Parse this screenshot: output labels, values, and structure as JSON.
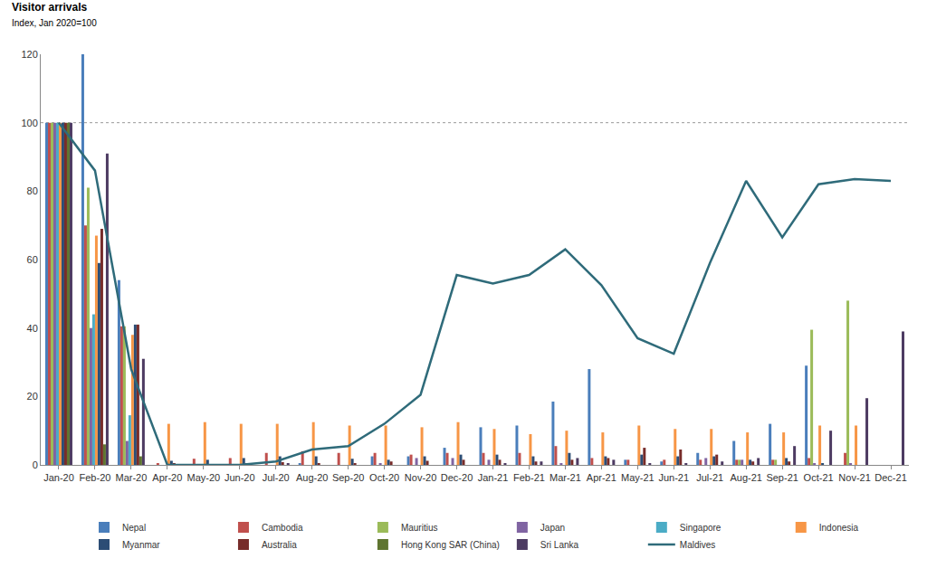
{
  "chart_data": {
    "type": "bar",
    "title": "Visitor arrivals",
    "subtitle": "Index, Jan 2020=100",
    "categories": [
      "Jan-20",
      "Feb-20",
      "Mar-20",
      "Apr-20",
      "May-20",
      "Jun-20",
      "Jul-20",
      "Aug-20",
      "Sep-20",
      "Oct-20",
      "Nov-20",
      "Dec-20",
      "Jan-21",
      "Feb-21",
      "Mar-21",
      "Apr-21",
      "May-21",
      "Jun-21",
      "Jul-21",
      "Aug-21",
      "Sep-21",
      "Oct-21",
      "Nov-21",
      "Dec-21"
    ],
    "ylim": [
      0,
      120
    ],
    "yticks": [
      0,
      20,
      40,
      60,
      80,
      100,
      120
    ],
    "grid": false,
    "legend": "bottom",
    "reference_line": 100,
    "series": [
      {
        "name": "Nepal",
        "type": "bar",
        "color": "#4a7ebb",
        "values": [
          100,
          120,
          54,
          0,
          0,
          0,
          0,
          0.5,
          0,
          2.5,
          2.5,
          5,
          11,
          11.5,
          18.5,
          28,
          1.5,
          1,
          3.5,
          7,
          12,
          29,
          0,
          null
        ]
      },
      {
        "name": "Cambodia",
        "type": "bar",
        "color": "#c0504d",
        "values": [
          100,
          70,
          40.5,
          0.5,
          1.8,
          2,
          3.5,
          4,
          3.5,
          3.5,
          3,
          3.5,
          3.5,
          3.5,
          5.5,
          2,
          1.5,
          1.5,
          1.5,
          1.5,
          1.5,
          2,
          3.5,
          null
        ]
      },
      {
        "name": "Mauritius",
        "type": "bar",
        "color": "#9bbb59",
        "values": [
          100,
          81,
          40.5,
          0,
          0,
          0,
          0,
          0,
          0,
          0,
          0,
          0,
          0,
          0,
          0,
          0,
          0,
          0,
          0,
          1.5,
          1.5,
          39.5,
          48,
          null
        ]
      },
      {
        "name": "Japan",
        "type": "bar",
        "color": "#8064a2",
        "values": [
          100,
          40,
          7,
          0,
          0,
          0,
          0,
          0,
          0,
          0.5,
          2,
          2,
          1.5,
          0,
          0.5,
          0,
          0,
          0,
          2,
          1.5,
          0,
          0.5,
          0.5,
          null
        ]
      },
      {
        "name": "Singapore",
        "type": "bar",
        "color": "#4bacc6",
        "values": [
          100,
          44,
          14.5,
          0,
          0,
          0,
          0,
          0,
          0,
          0,
          0,
          0,
          0,
          0,
          0,
          0,
          0,
          0,
          0,
          0,
          0,
          0,
          0,
          null
        ]
      },
      {
        "name": "Indonesia",
        "type": "bar",
        "color": "#f79646",
        "values": [
          100,
          67,
          38,
          12,
          12.5,
          12,
          12,
          12.5,
          11.5,
          11.5,
          11,
          12.5,
          10.5,
          9,
          10,
          9.5,
          11.5,
          10.5,
          10.5,
          9.5,
          9.5,
          11.5,
          11.5,
          null
        ]
      },
      {
        "name": "Myanmar",
        "type": "bar",
        "color": "#2c4d75",
        "values": [
          100,
          59,
          41,
          1.2,
          1.5,
          2,
          2.5,
          2.5,
          1.8,
          1.5,
          2.5,
          3,
          3,
          2.5,
          3.5,
          2.5,
          3,
          2.5,
          2.5,
          1.5,
          2,
          0.5,
          0,
          null
        ]
      },
      {
        "name": "Australia",
        "type": "bar",
        "color": "#772c2a",
        "values": [
          100,
          69,
          41,
          0.5,
          0,
          0.5,
          0.8,
          0.5,
          0.5,
          1,
          1.2,
          1.5,
          1.5,
          1,
          1.5,
          2,
          5,
          4.5,
          3,
          1,
          1,
          0,
          0,
          null
        ]
      },
      {
        "name": "Hong Kong SAR (China)",
        "type": "bar",
        "color": "#5f7530",
        "values": [
          100,
          6,
          2.5,
          0,
          0,
          0,
          0,
          0,
          0,
          0,
          0,
          0,
          0,
          0,
          0,
          0,
          0,
          0,
          0,
          0,
          0,
          0,
          0,
          null
        ]
      },
      {
        "name": "Sri Lanka",
        "type": "bar",
        "color": "#4d3b62",
        "values": [
          100,
          91,
          31,
          0,
          0,
          0,
          0.5,
          0,
          0,
          0,
          0,
          0,
          0.5,
          1,
          2,
          1.5,
          0.5,
          0.5,
          1,
          2,
          5.5,
          10,
          19.5,
          39
        ]
      },
      {
        "name": "Maldives",
        "type": "line",
        "color": "#2f6b7a",
        "values": [
          100,
          86,
          28,
          0,
          0,
          0,
          1,
          4.5,
          5.5,
          12,
          20.5,
          55.5,
          53,
          55.5,
          63,
          52.5,
          37,
          32.5,
          59,
          83,
          66.5,
          82,
          83.5,
          83
        ]
      }
    ]
  }
}
